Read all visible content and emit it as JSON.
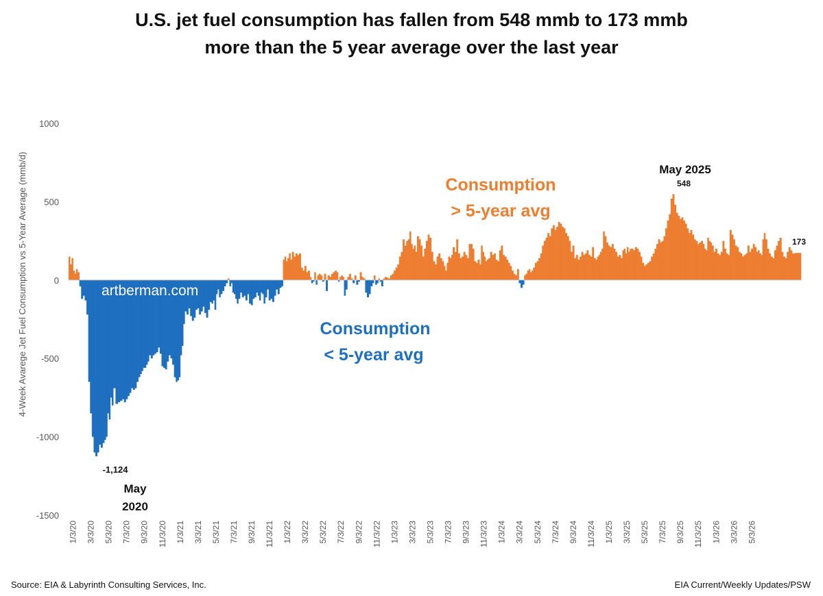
{
  "title_line1": "U.S. jet fuel consumption has fallen from 548 mmb to 173 mmb",
  "title_line2": "more than the 5 year average over the last year",
  "source": "Source: EIA & Labyrinth Consulting Services, Inc.",
  "credit": "EIA Current/Weekly Updates/PSW",
  "colors": {
    "positive": "#ED7D31",
    "negative": "#1F6FC0",
    "text": "#111111",
    "axis": "#555555"
  },
  "chart_data": {
    "type": "bar",
    "title": "U.S. jet fuel consumption has fallen from 548 mmb to 173 mmb more than the 5 year average over the last year",
    "ylabel": "4-Week Avarege Jet Fuel Consumption vs 5-Year Average (mmb/d)",
    "xlabel": "",
    "ylim": [
      -1500,
      1000
    ],
    "yticks": [
      1000,
      500,
      0,
      -500,
      -1000,
      -1500
    ],
    "grid": false,
    "x_tick_labels": [
      "1/3/20",
      "3/3/20",
      "5/3/20",
      "7/3/20",
      "9/3/20",
      "11/3/20",
      "1/3/21",
      "3/3/21",
      "5/3/21",
      "7/3/21",
      "9/3/21",
      "11/3/21",
      "1/3/22",
      "3/3/22",
      "5/3/22",
      "7/3/22",
      "9/3/22",
      "11/3/22",
      "1/3/23",
      "3/3/23",
      "5/3/23",
      "7/3/23",
      "9/3/23",
      "11/3/23",
      "1/3/24",
      "3/3/24",
      "5/3/24",
      "7/3/24",
      "9/3/24",
      "11/3/24",
      "1/3/25",
      "3/3/25",
      "5/3/25",
      "7/3/25",
      "9/3/25",
      "11/3/25",
      "1/3/26",
      "3/3/26",
      "5/3/26"
    ],
    "series": [
      {
        "frequency": "weekly",
        "values_by_month": [
          [
            150,
            100,
            140,
            60,
            40,
            70
          ],
          [
            50,
            -40,
            -120,
            -100,
            -130
          ],
          [
            -220,
            -650,
            -850,
            -1000,
            -1100
          ],
          [
            -1124,
            -1100,
            -1050,
            -1070,
            -1040
          ],
          [
            -1020,
            -1000,
            -850,
            -890,
            -750,
            -800
          ],
          [
            -690,
            -790,
            -780,
            -770
          ],
          [
            -760,
            -780,
            -760,
            -740,
            -720
          ],
          [
            -690,
            -700,
            -690,
            -650,
            -620
          ],
          [
            -600,
            -580,
            -560,
            -560,
            -540,
            -520
          ],
          [
            -480,
            -500,
            -480,
            -470,
            -460
          ],
          [
            -430,
            -470,
            -550,
            -560,
            -570
          ],
          [
            -520,
            -480,
            -500,
            -540,
            -620
          ],
          [
            -650,
            -640,
            -620,
            -480,
            -420,
            -280
          ],
          [
            -200,
            -220,
            -180,
            -230,
            -260
          ],
          [
            -240,
            -190,
            -180,
            -220,
            -200
          ],
          [
            -170,
            -210,
            -240,
            -190,
            -140
          ],
          [
            -150,
            -130,
            -190,
            -90,
            -60,
            -110
          ],
          [
            -90,
            -70,
            -40,
            -20,
            10
          ],
          [
            -40,
            -20,
            -80,
            -90,
            -120,
            -150
          ],
          [
            -120,
            -80,
            -110,
            -100,
            -130
          ],
          [
            -90,
            -150,
            -160,
            -120,
            -110
          ],
          [
            -80,
            -100,
            -130,
            -80,
            -90,
            -150
          ],
          [
            -110,
            -60,
            -130,
            -120,
            -140
          ],
          [
            -100,
            -60,
            -90,
            -50,
            -40
          ],
          [
            130,
            150,
            120,
            140,
            170,
            130
          ],
          [
            180,
            150,
            170,
            160,
            170
          ],
          [
            80,
            60,
            90,
            50,
            60
          ],
          [
            20,
            -20,
            -10,
            50,
            -30,
            30
          ],
          [
            40,
            30,
            -10,
            40,
            -70
          ],
          [
            30,
            20,
            40,
            50,
            60
          ],
          [
            50,
            -10,
            20,
            30,
            20,
            -100
          ],
          [
            -60,
            20,
            40,
            10,
            -20
          ],
          [
            30,
            -30,
            -10,
            50,
            20
          ],
          [
            10,
            -80,
            -110,
            -90,
            -40
          ],
          [
            -20,
            30,
            -30,
            -20,
            10,
            -10
          ],
          [
            -40,
            10,
            20,
            15,
            10
          ],
          [
            30,
            40,
            60,
            80,
            100
          ],
          [
            150,
            180,
            260,
            220,
            250
          ],
          [
            260,
            310,
            230,
            200,
            220,
            180
          ],
          [
            280,
            260,
            220,
            150,
            200
          ],
          [
            250,
            290,
            270,
            180,
            120
          ],
          [
            100,
            150,
            170,
            140,
            120
          ],
          [
            90,
            60,
            110,
            150,
            140,
            160
          ],
          [
            210,
            180,
            260,
            170,
            140
          ],
          [
            150,
            180,
            160,
            140,
            230
          ],
          [
            230,
            200,
            120,
            110,
            130
          ],
          [
            100,
            220,
            180,
            150,
            120,
            130
          ],
          [
            140,
            180,
            160,
            170,
            130
          ],
          [
            120,
            190,
            220,
            160,
            150
          ],
          [
            130,
            110,
            90,
            60,
            40
          ],
          [
            30,
            70,
            -20,
            -50,
            -30
          ],
          [
            30,
            40,
            60,
            70,
            50,
            60
          ],
          [
            80,
            110,
            120,
            140,
            170
          ],
          [
            220,
            250,
            270,
            300,
            280
          ],
          [
            330,
            350,
            320,
            340,
            370
          ],
          [
            360,
            340,
            330,
            300,
            280
          ],
          [
            250,
            180,
            220,
            140,
            160
          ],
          [
            130,
            150,
            180,
            160,
            170
          ],
          [
            190,
            160,
            150,
            210,
            140
          ],
          [
            130,
            150,
            160,
            180,
            200,
            310
          ],
          [
            280,
            240,
            220,
            210,
            230
          ],
          [
            200,
            180,
            150,
            160,
            140
          ],
          [
            190,
            200,
            170,
            210,
            180,
            200
          ],
          [
            200,
            190,
            210,
            200,
            180
          ],
          [
            150,
            110,
            90,
            100,
            110
          ],
          [
            120,
            150,
            170,
            200,
            230
          ],
          [
            260,
            240,
            250,
            280,
            330
          ],
          [
            380,
            420,
            520,
            548,
            480
          ],
          [
            430,
            410,
            390,
            400,
            380
          ],
          [
            360,
            330,
            300,
            320,
            290
          ],
          [
            260,
            250,
            230,
            240,
            250
          ],
          [
            230,
            200,
            190,
            270,
            250,
            240
          ],
          [
            220,
            180,
            200,
            170,
            160
          ],
          [
            180,
            250,
            200,
            170,
            160
          ],
          [
            320,
            290,
            260,
            220,
            210
          ],
          [
            180,
            170,
            150,
            160,
            170
          ],
          [
            220,
            180,
            200,
            230,
            210
          ],
          [
            180,
            190,
            170,
            160,
            260,
            300
          ],
          [
            260,
            200,
            170,
            150,
            140
          ],
          [
            190,
            220,
            250,
            270,
            180
          ],
          [
            150,
            140,
            180,
            210,
            190
          ],
          [
            170,
            173,
            173
          ]
        ]
      }
    ],
    "annotations": [
      {
        "text": "-1,124",
        "kind": "value_label"
      },
      {
        "text": "May",
        "kind": "note"
      },
      {
        "text": "2020",
        "kind": "note"
      },
      {
        "text": "May 2025",
        "kind": "note"
      },
      {
        "text": "548",
        "kind": "value_label"
      },
      {
        "text": "173",
        "kind": "value_label"
      },
      {
        "text": "Consumption",
        "kind": "positive_label"
      },
      {
        "text": "> 5-year avg",
        "kind": "positive_label"
      },
      {
        "text": "Consumption",
        "kind": "negative_label"
      },
      {
        "text": "< 5-year avg",
        "kind": "negative_label"
      },
      {
        "text": "artberman.com",
        "kind": "watermark"
      }
    ]
  }
}
